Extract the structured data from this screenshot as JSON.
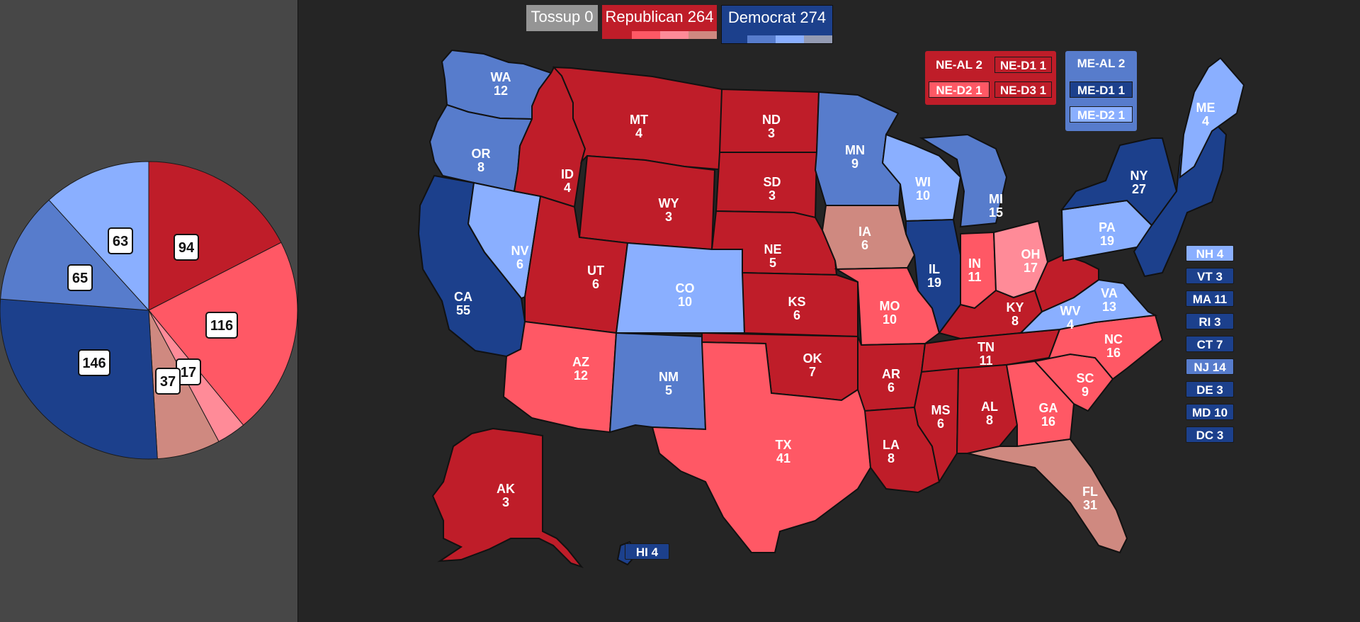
{
  "colors": {
    "tossup": "#959595",
    "safe_r": "#bf1d29",
    "likely_r": "#ff5865",
    "lean_r": "#ff8b98",
    "tilt_r": "#cf8980",
    "safe_d": "#1c408c",
    "likely_d": "#577ccc",
    "lean_d": "#8aafff",
    "tilt_d": "#949bb3"
  },
  "totals": {
    "tossup": "Tossup 0",
    "republican": "Republican 264",
    "democrat": "Democrat 274"
  },
  "pie": {
    "slices": [
      {
        "label": "94",
        "value": 94,
        "color": "#bf1d29"
      },
      {
        "label": "116",
        "value": 116,
        "color": "#ff5865"
      },
      {
        "label": "17",
        "value": 17,
        "color": "#ff8b98"
      },
      {
        "label": "37",
        "value": 37,
        "color": "#cf8980"
      },
      {
        "label": "146",
        "value": 146,
        "color": "#1c408c"
      },
      {
        "label": "65",
        "value": 65,
        "color": "#577ccc"
      },
      {
        "label": "63",
        "value": 63,
        "color": "#8aafff"
      }
    ]
  },
  "districts": {
    "ne_al": "NE-AL 2",
    "ne_d1": "NE-D1 1",
    "ne_d2": "NE-D2 1",
    "ne_d3": "NE-D3 1",
    "me_al": "ME-AL 2",
    "me_d1": "ME-D1 1",
    "me_d2": "ME-D2 1"
  },
  "small_states": [
    {
      "label": "NH 4",
      "color": "#8aafff"
    },
    {
      "label": "VT 3",
      "color": "#1c408c"
    },
    {
      "label": "MA 11",
      "color": "#1c408c"
    },
    {
      "label": "RI 3",
      "color": "#1c408c"
    },
    {
      "label": "CT 7",
      "color": "#1c408c"
    },
    {
      "label": "NJ 14",
      "color": "#577ccc"
    },
    {
      "label": "DE 3",
      "color": "#1c408c"
    },
    {
      "label": "MD 10",
      "color": "#1c408c"
    },
    {
      "label": "DC 3",
      "color": "#1c408c"
    }
  ],
  "hawaii": "HI 4",
  "states": [
    {
      "abbr": "WA",
      "ev": "12",
      "color": "#577ccc"
    },
    {
      "abbr": "OR",
      "ev": "8",
      "color": "#577ccc"
    },
    {
      "abbr": "CA",
      "ev": "55",
      "color": "#1c408c"
    },
    {
      "abbr": "NV",
      "ev": "6",
      "color": "#8aafff"
    },
    {
      "abbr": "ID",
      "ev": "4",
      "color": "#bf1d29"
    },
    {
      "abbr": "MT",
      "ev": "4",
      "color": "#bf1d29"
    },
    {
      "abbr": "WY",
      "ev": "3",
      "color": "#bf1d29"
    },
    {
      "abbr": "UT",
      "ev": "6",
      "color": "#bf1d29"
    },
    {
      "abbr": "AZ",
      "ev": "12",
      "color": "#ff5865"
    },
    {
      "abbr": "CO",
      "ev": "10",
      "color": "#8aafff"
    },
    {
      "abbr": "NM",
      "ev": "5",
      "color": "#577ccc"
    },
    {
      "abbr": "ND",
      "ev": "3",
      "color": "#bf1d29"
    },
    {
      "abbr": "SD",
      "ev": "3",
      "color": "#bf1d29"
    },
    {
      "abbr": "NE",
      "ev": "5",
      "color": "#bf1d29"
    },
    {
      "abbr": "KS",
      "ev": "6",
      "color": "#bf1d29"
    },
    {
      "abbr": "OK",
      "ev": "7",
      "color": "#bf1d29"
    },
    {
      "abbr": "TX",
      "ev": "41",
      "color": "#ff5865"
    },
    {
      "abbr": "MN",
      "ev": "9",
      "color": "#577ccc"
    },
    {
      "abbr": "IA",
      "ev": "6",
      "color": "#cf8980"
    },
    {
      "abbr": "MO",
      "ev": "10",
      "color": "#ff5865"
    },
    {
      "abbr": "AR",
      "ev": "6",
      "color": "#bf1d29"
    },
    {
      "abbr": "LA",
      "ev": "8",
      "color": "#bf1d29"
    },
    {
      "abbr": "WI",
      "ev": "10",
      "color": "#8aafff"
    },
    {
      "abbr": "IL",
      "ev": "19",
      "color": "#1c408c"
    },
    {
      "abbr": "MI",
      "ev": "15",
      "color": "#577ccc"
    },
    {
      "abbr": "IN",
      "ev": "11",
      "color": "#ff5865"
    },
    {
      "abbr": "OH",
      "ev": "17",
      "color": "#ff8b98"
    },
    {
      "abbr": "KY",
      "ev": "8",
      "color": "#bf1d29"
    },
    {
      "abbr": "TN",
      "ev": "11",
      "color": "#bf1d29"
    },
    {
      "abbr": "MS",
      "ev": "6",
      "color": "#bf1d29"
    },
    {
      "abbr": "AL",
      "ev": "8",
      "color": "#bf1d29"
    },
    {
      "abbr": "GA",
      "ev": "16",
      "color": "#ff5865"
    },
    {
      "abbr": "FL",
      "ev": "31",
      "color": "#cf8980"
    },
    {
      "abbr": "SC",
      "ev": "9",
      "color": "#ff5865"
    },
    {
      "abbr": "NC",
      "ev": "16",
      "color": "#ff5865"
    },
    {
      "abbr": "VA",
      "ev": "13",
      "color": "#8aafff"
    },
    {
      "abbr": "WV",
      "ev": "4",
      "color": "#bf1d29"
    },
    {
      "abbr": "PA",
      "ev": "19",
      "color": "#8aafff"
    },
    {
      "abbr": "NY",
      "ev": "27",
      "color": "#1c408c"
    },
    {
      "abbr": "ME",
      "ev": "4",
      "color": "#8aafff"
    },
    {
      "abbr": "AK",
      "ev": "3",
      "color": "#bf1d29"
    }
  ]
}
